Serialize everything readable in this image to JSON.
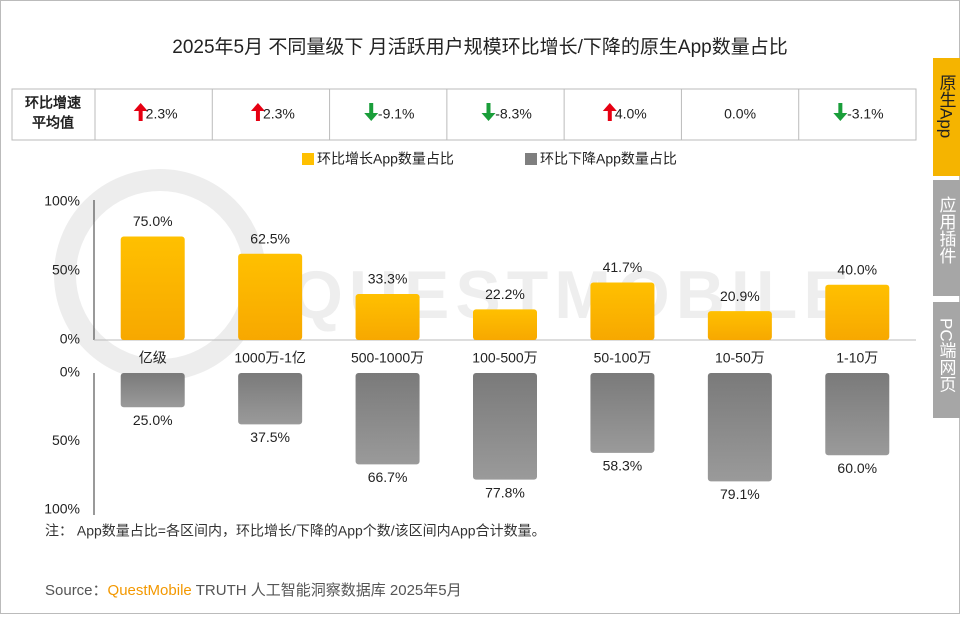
{
  "chart_data": [
    {
      "type": "bar",
      "title": "2025年5月 不同量级下 月活跃用户规模环比增长/下降的原生App数量占比",
      "categories": [
        "亿级",
        "1000万-1亿",
        "500-1000万",
        "100-500万",
        "50-100万",
        "10-50万",
        "1-10万"
      ],
      "series": [
        {
          "name": "环比增长App数量占比",
          "color": "#ffc000",
          "values": [
            75.0,
            62.5,
            33.3,
            22.2,
            41.7,
            20.9,
            40.0
          ],
          "value_labels": [
            "75.0%",
            "62.5%",
            "33.3%",
            "22.2%",
            "41.7%",
            "20.9%",
            "40.0%"
          ]
        }
      ],
      "ylim": [
        0,
        100
      ],
      "yticks": [
        {
          "value": 0,
          "label": "0%"
        },
        {
          "value": 50,
          "label": "50%"
        },
        {
          "value": 100,
          "label": "100%"
        }
      ]
    },
    {
      "type": "bar",
      "series": [
        {
          "name": "环比下降App数量占比",
          "color": "#7f7f7f",
          "values": [
            25.0,
            37.5,
            66.7,
            77.8,
            58.3,
            79.1,
            60.0
          ],
          "value_labels": [
            "25.0%",
            "37.5%",
            "66.7%",
            "77.8%",
            "58.3%",
            "79.1%",
            "60.0%"
          ]
        }
      ],
      "ylim": [
        0,
        100
      ],
      "inverted": true,
      "yticks": [
        {
          "value": 0,
          "label": "0%"
        },
        {
          "value": 50,
          "label": "50%"
        },
        {
          "value": 100,
          "label": "100%"
        }
      ]
    }
  ],
  "summary_row": {
    "label": [
      "环比增速",
      "平均值"
    ],
    "values": [
      2.3,
      2.3,
      -9.1,
      -8.3,
      4.0,
      0.0,
      -3.1
    ],
    "value_labels": [
      "2.3%",
      "2.3%",
      "-9.1%",
      "-8.3%",
      "4.0%",
      "0.0%",
      "-3.1%"
    ]
  },
  "note": "注：  App数量占比=各区间内，环比增长/下降的App个数/该区间内App合计数量。",
  "source": {
    "prefix": "Source：",
    "brand": "QuestMobile",
    "text": "TRUTH 人工智能洞察数据库 2025年5月"
  },
  "watermark": "QUESTMOBILE",
  "tabs": [
    "原生App",
    "应用插件",
    "PC端网页"
  ]
}
